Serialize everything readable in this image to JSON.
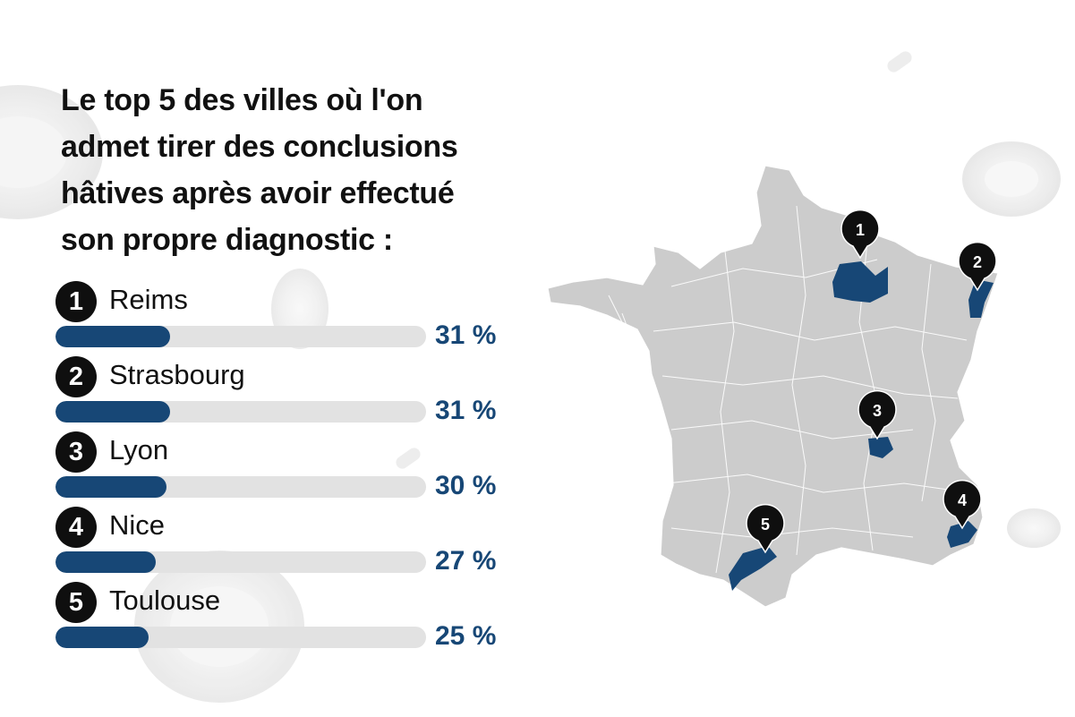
{
  "title_lines": [
    "Le top 5 des villes où l'on",
    "admet tirer des conclusions",
    "hâtives après avoir effectué",
    "son propre diagnostic  :"
  ],
  "colors": {
    "accent": "#174776",
    "track": "#e2e2e2",
    "map": "#cccccc",
    "badge": "#0f0f0f"
  },
  "chart_data": {
    "type": "bar",
    "orientation": "horizontal",
    "title": "Le top 5 des villes où l'on admet tirer des conclusions hâtives après avoir effectué son propre diagnostic  :",
    "categories": [
      "Reims",
      "Strasbourg",
      "Lyon",
      "Nice",
      "Toulouse"
    ],
    "ranks": [
      "1",
      "2",
      "3",
      "4",
      "5"
    ],
    "values": [
      31,
      31,
      30,
      27,
      25
    ],
    "labels": [
      "31 %",
      "31 %",
      "30 %",
      "27 %",
      "25 %"
    ],
    "unit": "%",
    "xlim": [
      0,
      100
    ],
    "grid": false,
    "legend": "none"
  },
  "map": {
    "markers": [
      {
        "rank": "1",
        "city": "Reims",
        "icon": "map-pin-icon"
      },
      {
        "rank": "2",
        "city": "Strasbourg",
        "icon": "map-pin-icon"
      },
      {
        "rank": "3",
        "city": "Lyon",
        "icon": "map-pin-icon"
      },
      {
        "rank": "4",
        "city": "Nice",
        "icon": "map-pin-icon"
      },
      {
        "rank": "5",
        "city": "Toulouse",
        "icon": "map-pin-icon"
      }
    ]
  }
}
